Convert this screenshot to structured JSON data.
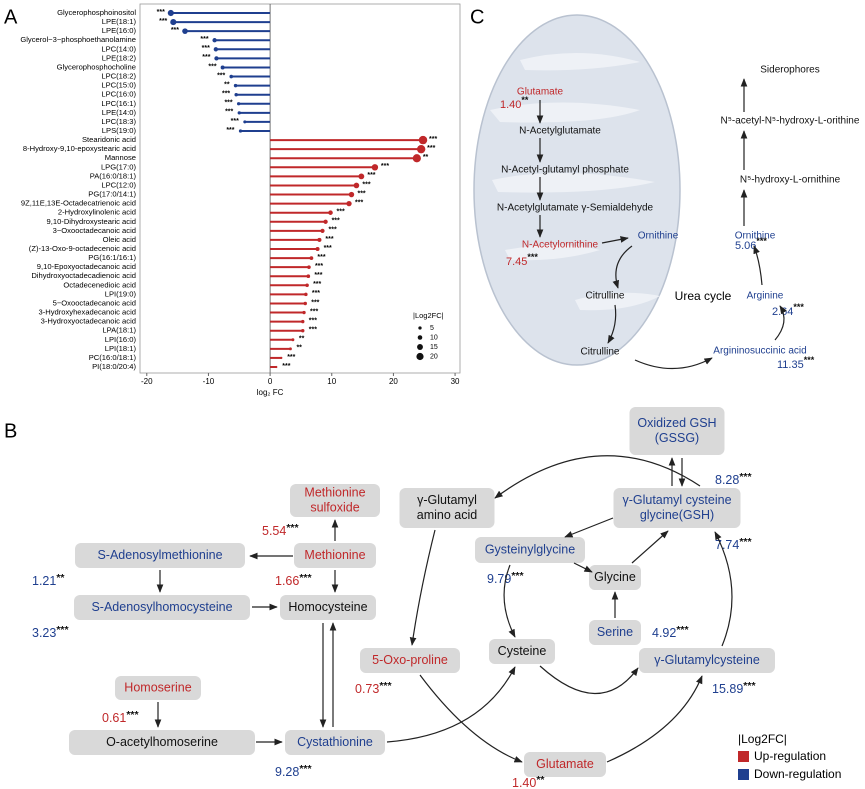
{
  "panel_labels": [
    "A",
    "B",
    "C"
  ],
  "chart_data": {
    "type": "lollipop",
    "categories": [
      "Glycerophosphoinositol",
      "LPE(18:1)",
      "LPE(16:0)",
      "Glycerol−3−phosphoethanolamine",
      "LPC(14:0)",
      "LPE(18:2)",
      "Glycerophosphocholine",
      "LPC(18:2)",
      "LPC(15:0)",
      "LPC(16:0)",
      "LPC(16:1)",
      "LPE(14:0)",
      "LPC(18:3)",
      "LPS(19:0)",
      "Stearidonic acid",
      "8-Hydroxy-9,10-epoxystearic acid",
      "Mannose",
      "LPG(17:0)",
      "PA(16:0/18:1)",
      "LPC(12:0)",
      "PG(17:0/14:1)",
      "9Z,11E,13E-Octadecatrienoic acid",
      "2-Hydroxylinolenic acid",
      "9,10-Dihydroxystearic acid",
      "3−Oxooctadecanoic acid",
      "Oleic acid",
      "(Z)-13-Oxo-9-octadecenoic acid",
      "PG(16:1/16:1)",
      "9,10-Epoxyoctadecanoic acid",
      "Dihydroxyoctadecadienoic acid",
      "Octadecenedioic acid",
      "LPI(19:0)",
      "5−Oxooctadecanoic acid",
      "3-Hydroxyhexadecanoic acid",
      "3-Hydroxyoctadecanoic acid",
      "LPA(18:1)",
      "LPI(16:0)",
      "LPI(18:1)",
      "PC(16:0/18:1)",
      "PI(18:0/20:4)"
    ],
    "values": [
      -16.1,
      -15.7,
      -13.8,
      -9.0,
      -8.8,
      -8.7,
      -7.7,
      -6.3,
      -5.6,
      -5.5,
      -5.1,
      -5.0,
      -4.1,
      -4.8,
      24.8,
      24.5,
      23.8,
      17.0,
      14.8,
      14.0,
      13.2,
      12.8,
      9.8,
      9.0,
      8.5,
      8.0,
      7.7,
      6.7,
      6.3,
      6.2,
      6.0,
      5.8,
      5.7,
      5.5,
      5.3,
      5.3,
      3.7,
      3.3,
      1.8,
      1.0
    ],
    "significance": [
      "***",
      "***",
      "***",
      "***",
      "***",
      "***",
      "***",
      "***",
      "**",
      "***",
      "***",
      "***",
      "***",
      "***",
      "***",
      "***",
      "**",
      "***",
      "***",
      "***",
      "***",
      "***",
      "***",
      "***",
      "***",
      "***",
      "***",
      "***",
      "***",
      "***",
      "***",
      "***",
      "***",
      "***",
      "***",
      "***",
      "**",
      "**",
      "***",
      "***"
    ],
    "neg_color": "#1f3f8f",
    "pos_color": "#c0282a",
    "xlim": [
      -21.1,
      30.8
    ],
    "xticks": [
      -20,
      -10,
      0,
      10,
      20,
      30
    ],
    "xlabel": "log₂ FC",
    "size_legend": {
      "title": "|Log2FC|",
      "values": [
        5,
        10,
        15,
        20
      ]
    }
  },
  "panel_b": {
    "nodes": [
      {
        "label": [
          "Oxidized GSH",
          "(GSSG)"
        ],
        "regulation": "down",
        "value": "8.28",
        "significance": "***"
      },
      {
        "label": [
          "γ-Glutamyl",
          "amino acid"
        ],
        "regulation": "none"
      },
      {
        "label": [
          "γ-Glutamyl cysteine",
          "glycine(GSH)"
        ],
        "regulation": "down",
        "value": "7.74",
        "significance": "***"
      },
      {
        "label": [
          "Methionine",
          "sulfoxide"
        ],
        "regulation": "up",
        "value": "5.54",
        "significance": "***"
      },
      {
        "label": [
          "S-Adenosylmethionine"
        ],
        "regulation": "down",
        "value": "1.21",
        "significance": "**"
      },
      {
        "label": [
          "Methionine"
        ],
        "regulation": "up",
        "value": "1.66",
        "significance": "***"
      },
      {
        "label": [
          "Gysteinylglycine"
        ],
        "regulation": "down",
        "value": "9.79",
        "significance": "***"
      },
      {
        "label": [
          "Glycine"
        ],
        "regulation": "none"
      },
      {
        "label": [
          "S-Adenosylhomocysteine"
        ],
        "regulation": "down",
        "value": "3.23",
        "significance": "***"
      },
      {
        "label": [
          "Homocysteine"
        ],
        "regulation": "none"
      },
      {
        "label": [
          "Serine"
        ],
        "regulation": "down",
        "value": "4.92",
        "significance": "***"
      },
      {
        "label": [
          "5-Oxo-proline"
        ],
        "regulation": "up",
        "value": "0.73",
        "significance": "***"
      },
      {
        "label": [
          "Cysteine"
        ],
        "regulation": "none"
      },
      {
        "label": [
          "γ-Glutamylcysteine"
        ],
        "regulation": "down",
        "value": "15.89",
        "significance": "***"
      },
      {
        "label": [
          "Homoserine"
        ],
        "regulation": "up",
        "value": "0.61",
        "significance": "***"
      },
      {
        "label": [
          "O-acetylhomoserine"
        ],
        "regulation": "none"
      },
      {
        "label": [
          "Cystathionine"
        ],
        "regulation": "down",
        "value": "9.28",
        "significance": "***"
      },
      {
        "label": [
          "Glutamate"
        ],
        "regulation": "up",
        "value": "1.40",
        "significance": "**"
      }
    ],
    "legend": {
      "title": "|Log2FC|",
      "up": {
        "label": "Up-regulation",
        "color": "#c0282a"
      },
      "down": {
        "label": "Down-regulation",
        "color": "#1f3f8f"
      }
    }
  },
  "panel_c": {
    "nodes": [
      {
        "label": "Glutamate",
        "regulation": "up",
        "value": "1.40",
        "significance": "**"
      },
      {
        "label": "N-Acetylglutamate",
        "regulation": "none"
      },
      {
        "label": "N-Acetyl-glutamyl phosphate",
        "regulation": "none"
      },
      {
        "label": "N-Acetylglutamate γ-Semialdehyde",
        "regulation": "none"
      },
      {
        "label": "N-Acetylornithine",
        "regulation": "up",
        "value": "7.45",
        "significance": "***"
      },
      {
        "label": "Ornithine",
        "regulation": "down"
      },
      {
        "label": "Citrulline",
        "regulation": "none"
      },
      {
        "label": "Citrulline",
        "regulation": "none"
      },
      {
        "label": "Arginine",
        "regulation": "down",
        "value": "2.64",
        "significance": "***"
      },
      {
        "label": "Argininosuccinic acid",
        "regulation": "down",
        "value": "11.35",
        "significance": "***"
      },
      {
        "label": "Ornithine",
        "regulation": "down",
        "value": "5.06",
        "significance": "***"
      },
      {
        "label": "N⁵-hydroxy-L-ornithine",
        "regulation": "none"
      },
      {
        "label": "N⁵-acetyl-N⁵-hydroxy-L-orithine",
        "regulation": "none"
      },
      {
        "label": "Siderophores",
        "regulation": "none"
      }
    ],
    "cycle_label": "Urea cycle"
  }
}
